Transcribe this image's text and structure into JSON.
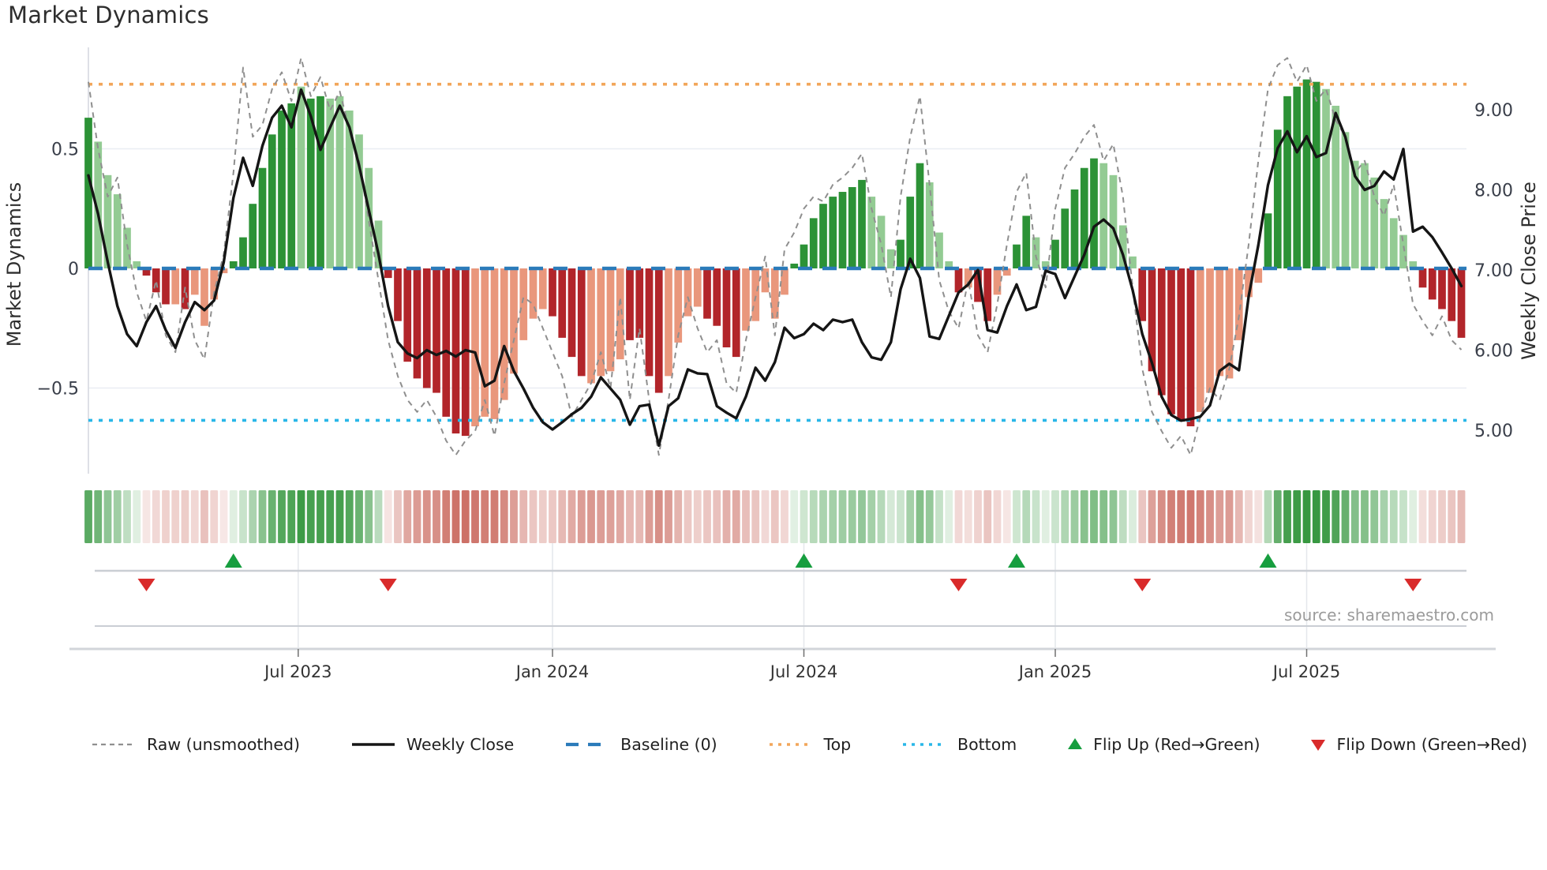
{
  "title": "Market Dynamics",
  "source": "source: sharemaestro.com",
  "colors": {
    "bar_dark_green": "#2c9236",
    "bar_light_green": "#93cb93",
    "bar_dark_red": "#b2252a",
    "bar_salmon": "#e9977c",
    "baseline_blue": "#2b7bba",
    "top_orange": "#f2a65a",
    "bottom_cyan": "#29b7e8",
    "raw_gray": "#8f8f8f",
    "close_black": "#151515",
    "flip_green": "#179e3f",
    "flip_red": "#d92b2b",
    "heat_green_rgb": "44,146,54",
    "heat_red_rgb": "196,88,76",
    "grid": "#e9edf3",
    "spine": "#d5d9df",
    "strip_line": "#caced4",
    "axis_line": "#d2d5da",
    "tick_text": "#3a3f4a",
    "xlabel_text": "#333333",
    "source_text": "#9b9b9b"
  },
  "chart_data": {
    "type": "bar+line",
    "title": "Market Dynamics",
    "left_axis": {
      "label": "Market Dynamics",
      "tick_values": [
        0.5,
        0,
        -0.5
      ],
      "tick_labels": [
        "0.5",
        "0",
        "−0.5"
      ],
      "range": [
        -0.88,
        0.92
      ]
    },
    "right_axis": {
      "label": "Weekly Close Price",
      "tick_values": [
        9,
        8,
        7,
        6,
        5
      ],
      "tick_labels": [
        "9.00",
        "8.00",
        "7.00",
        "6.00",
        "5.00"
      ],
      "range": [
        4.45,
        9.75
      ]
    },
    "x_ticks": [
      {
        "label": "Jul 2023",
        "week": 21.7
      },
      {
        "label": "Jan 2024",
        "week": 48
      },
      {
        "label": "Jul 2024",
        "week": 74
      },
      {
        "label": "Jan 2025",
        "week": 100
      },
      {
        "label": "Jul 2025",
        "week": 126
      }
    ],
    "baseline": 0,
    "top_band": 0.77,
    "bottom_band": -0.635,
    "grid_y": [
      0.5,
      -0.5
    ],
    "oscillator": [
      0.63,
      0.53,
      0.39,
      0.31,
      0.17,
      0.03,
      -0.03,
      -0.1,
      -0.15,
      -0.15,
      -0.17,
      -0.11,
      -0.24,
      -0.13,
      -0.02,
      0.03,
      0.13,
      0.27,
      0.42,
      0.56,
      0.66,
      0.69,
      0.76,
      0.71,
      0.72,
      0.71,
      0.72,
      0.66,
      0.56,
      0.42,
      0.2,
      -0.04,
      -0.22,
      -0.39,
      -0.46,
      -0.5,
      -0.52,
      -0.62,
      -0.69,
      -0.7,
      -0.66,
      -0.62,
      -0.63,
      -0.55,
      -0.44,
      -0.3,
      -0.21,
      -0.17,
      -0.2,
      -0.29,
      -0.37,
      -0.45,
      -0.48,
      -0.45,
      -0.43,
      -0.38,
      -0.3,
      -0.29,
      -0.45,
      -0.52,
      -0.45,
      -0.31,
      -0.2,
      -0.16,
      -0.21,
      -0.24,
      -0.33,
      -0.37,
      -0.26,
      -0.22,
      -0.1,
      -0.21,
      -0.11,
      0.02,
      0.1,
      0.21,
      0.27,
      0.3,
      0.32,
      0.34,
      0.37,
      0.3,
      0.22,
      0.08,
      0.12,
      0.3,
      0.44,
      0.36,
      0.15,
      0.03,
      -0.1,
      -0.08,
      -0.14,
      -0.22,
      -0.11,
      -0.03,
      0.1,
      0.22,
      0.13,
      0.03,
      0.12,
      0.25,
      0.33,
      0.42,
      0.46,
      0.44,
      0.39,
      0.18,
      0.05,
      -0.22,
      -0.43,
      -0.53,
      -0.61,
      -0.64,
      -0.66,
      -0.6,
      -0.52,
      -0.45,
      -0.46,
      -0.3,
      -0.12,
      -0.06,
      0.23,
      0.58,
      0.72,
      0.76,
      0.79,
      0.78,
      0.75,
      0.68,
      0.57,
      0.45,
      0.44,
      0.38,
      0.29,
      0.21,
      0.14,
      0.03,
      -0.08,
      -0.13,
      -0.17,
      -0.22,
      -0.29
    ],
    "shade": "dllllldddldllllddddd ddlddllllll dddddddddlllllllldd ddlllldddd llllddddlllllddddddd dllldddllldlddllddlldddddlllld dddddlllllllddddddlllllllllldd ddd",
    "close": [
      8.18,
      7.7,
      7.1,
      6.55,
      6.2,
      6.05,
      6.35,
      6.55,
      6.25,
      6.03,
      6.35,
      6.6,
      6.5,
      6.62,
      7.1,
      7.9,
      8.4,
      8.05,
      8.55,
      8.9,
      9.05,
      8.78,
      9.25,
      8.92,
      8.5,
      8.78,
      9.05,
      8.78,
      8.3,
      7.75,
      7.2,
      6.55,
      6.1,
      5.96,
      5.9,
      6.0,
      5.94,
      5.99,
      5.92,
      6.0,
      5.97,
      5.55,
      5.62,
      6.05,
      5.74,
      5.52,
      5.28,
      5.1,
      5.01,
      5.1,
      5.2,
      5.28,
      5.42,
      5.66,
      5.52,
      5.38,
      5.07,
      5.3,
      5.32,
      4.81,
      5.3,
      5.4,
      5.76,
      5.71,
      5.7,
      5.3,
      5.22,
      5.15,
      5.42,
      5.78,
      5.62,
      5.85,
      6.28,
      6.15,
      6.2,
      6.33,
      6.25,
      6.38,
      6.35,
      6.38,
      6.1,
      5.91,
      5.88,
      6.1,
      6.76,
      7.14,
      6.9,
      6.17,
      6.14,
      6.43,
      6.72,
      6.82,
      7.0,
      6.25,
      6.22,
      6.55,
      6.82,
      6.5,
      6.54,
      6.99,
      6.95,
      6.65,
      6.92,
      7.19,
      7.54,
      7.63,
      7.52,
      7.19,
      6.75,
      6.2,
      5.84,
      5.42,
      5.19,
      5.12,
      5.14,
      5.17,
      5.31,
      5.74,
      5.83,
      5.75,
      6.67,
      7.31,
      8.06,
      8.52,
      8.73,
      8.47,
      8.67,
      8.41,
      8.46,
      8.96,
      8.66,
      8.17,
      8.0,
      8.05,
      8.23,
      8.13,
      8.51,
      7.48,
      7.54,
      7.41,
      7.22,
      7.02,
      6.8
    ],
    "raw": [
      0.78,
      0.5,
      0.3,
      0.38,
      0.1,
      -0.1,
      -0.22,
      -0.05,
      -0.28,
      -0.35,
      -0.08,
      -0.3,
      -0.38,
      -0.1,
      0.06,
      0.4,
      0.84,
      0.55,
      0.6,
      0.75,
      0.82,
      0.7,
      0.88,
      0.72,
      0.8,
      0.66,
      0.74,
      0.58,
      0.45,
      0.2,
      -0.05,
      -0.3,
      -0.45,
      -0.55,
      -0.6,
      -0.55,
      -0.62,
      -0.72,
      -0.78,
      -0.72,
      -0.68,
      -0.55,
      -0.7,
      -0.48,
      -0.3,
      -0.12,
      -0.15,
      -0.25,
      -0.35,
      -0.45,
      -0.62,
      -0.55,
      -0.48,
      -0.35,
      -0.5,
      -0.12,
      -0.55,
      -0.25,
      -0.55,
      -0.78,
      -0.55,
      -0.28,
      -0.12,
      -0.25,
      -0.35,
      -0.3,
      -0.48,
      -0.52,
      -0.3,
      -0.12,
      0.05,
      -0.28,
      0.08,
      0.15,
      0.25,
      0.3,
      0.28,
      0.35,
      0.38,
      0.42,
      0.48,
      0.25,
      0.1,
      -0.12,
      0.3,
      0.55,
      0.72,
      0.35,
      -0.05,
      -0.18,
      -0.25,
      -0.05,
      -0.28,
      -0.35,
      -0.15,
      0.1,
      0.32,
      0.4,
      0.05,
      -0.08,
      0.25,
      0.42,
      0.48,
      0.55,
      0.6,
      0.45,
      0.52,
      0.3,
      -0.08,
      -0.42,
      -0.6,
      -0.68,
      -0.75,
      -0.7,
      -0.78,
      -0.62,
      -0.5,
      -0.55,
      -0.42,
      -0.2,
      0.1,
      0.45,
      0.75,
      0.85,
      0.88,
      0.78,
      0.85,
      0.7,
      0.75,
      0.62,
      0.55,
      0.4,
      0.45,
      0.3,
      0.22,
      0.35,
      0.1,
      -0.15,
      -0.22,
      -0.28,
      -0.2,
      -0.3,
      -0.34
    ],
    "flip_up_weeks": [
      15,
      74,
      96,
      122
    ],
    "flip_down_weeks": [
      6,
      31,
      90,
      109,
      137
    ]
  },
  "legend": {
    "items": [
      {
        "swatch": "dash-gray",
        "label": "Raw (unsmoothed)"
      },
      {
        "swatch": "solid-black",
        "label": "Weekly Close"
      },
      {
        "swatch": "dash-blue",
        "label": "Baseline (0)"
      },
      {
        "swatch": "dot-orange",
        "label": "Top"
      },
      {
        "swatch": "dot-cyan",
        "label": "Bottom"
      },
      {
        "swatch": "tri-up",
        "label": "Flip Up (Red→Green)"
      },
      {
        "swatch": "tri-down",
        "label": "Flip Down (Green→Red)"
      }
    ]
  }
}
